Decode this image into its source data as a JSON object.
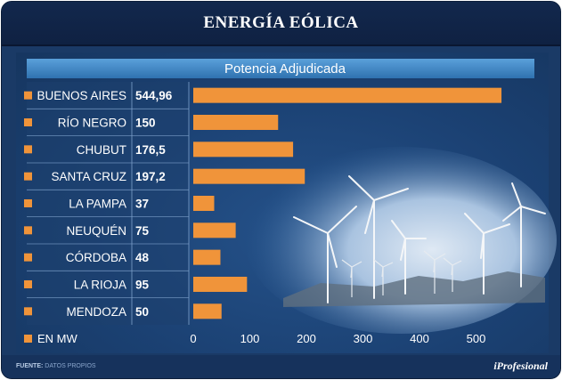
{
  "header": {
    "title": "ENERGÍA EÓLICA"
  },
  "footer": {
    "source_label": "FUENTE:",
    "source_text": "DATOS PROPIOS",
    "brand": "iProfesional"
  },
  "chart_data": {
    "type": "bar",
    "orientation": "horizontal",
    "title": "Potencia Adjudicada",
    "unit_note": "EN MW",
    "categories": [
      "BUENOS AIRES",
      "RÍO NEGRO",
      "CHUBUT",
      "SANTA CRUZ",
      "LA PAMPA",
      "NEUQUÉN",
      "CÓRDOBA",
      "LA RIOJA",
      "MENDOZA"
    ],
    "values": [
      544.96,
      150,
      176.5,
      197.2,
      37,
      75,
      48,
      95,
      50
    ],
    "value_labels": [
      "544,96",
      "150",
      "176,5",
      "197,2",
      "37",
      "75",
      "48",
      "95",
      "50"
    ],
    "xticks": [
      0,
      100,
      200,
      300,
      400,
      500
    ],
    "xlim": [
      0,
      560
    ],
    "grid": false,
    "colors": {
      "bar": "#f0943a",
      "bullet": "#f0943a",
      "title_band": "#3f86c4",
      "text": "#ffffff"
    }
  }
}
